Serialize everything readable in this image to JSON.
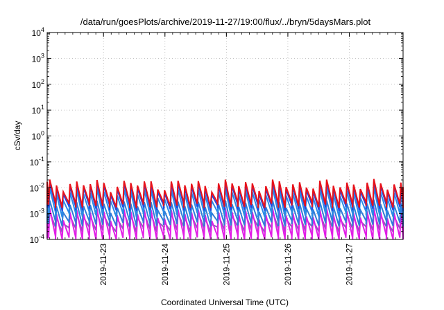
{
  "chart_data": {
    "type": "line",
    "title": "/data/run/goesPlots/archive/2019-11-27/19:00/flux/../bryn/5daysMars.plot",
    "xlabel": "Coordinated Universal Time (UTC)",
    "ylabel": "cSv/day",
    "y_scale": "log",
    "ylim": [
      0.0001,
      10000
    ],
    "xlim": [
      "2019-11-22 02:00",
      "2019-11-27 21:00"
    ],
    "x_ticks": [
      "2019-11-23",
      "2019-11-24",
      "2019-11-25",
      "2019-11-26",
      "2019-11-27"
    ],
    "y_ticks": [
      {
        "base": "10",
        "exp": "-4",
        "value": 0.0001
      },
      {
        "base": "10",
        "exp": "-3",
        "value": 0.001
      },
      {
        "base": "10",
        "exp": "-2",
        "value": 0.01
      },
      {
        "base": "10",
        "exp": "-1",
        "value": 0.1
      },
      {
        "base": "10",
        "exp": "0",
        "value": 1
      },
      {
        "base": "10",
        "exp": "1",
        "value": 10
      },
      {
        "base": "10",
        "exp": "2",
        "value": 100
      },
      {
        "base": "10",
        "exp": "3",
        "value": 1000
      },
      {
        "base": "10",
        "exp": "4",
        "value": 10000
      }
    ],
    "grid": true,
    "pattern": {
      "description_values": "sawtooth series; each cycle rises sharply to peak then decays to trough",
      "cycles_per_day": 9.1,
      "first_peak": "2019-11-22 03:00"
    },
    "series": [
      {
        "color": "#e8121b",
        "peak": 0.014,
        "trough": 0.0022
      },
      {
        "color": "#2446e0",
        "peak": 0.011,
        "trough": 0.0017
      },
      {
        "color": "#2a8ae6",
        "peak": 0.0065,
        "trough": 0.00095
      },
      {
        "color": "#2f7cd8",
        "peak": 0.0022,
        "trough": 0.00042
      },
      {
        "color": "#e11ee6",
        "peak": 0.0011,
        "trough": 0.00011
      },
      {
        "color": "#8a5fb8",
        "peak": 0.0008,
        "trough": 0.00025
      }
    ]
  }
}
